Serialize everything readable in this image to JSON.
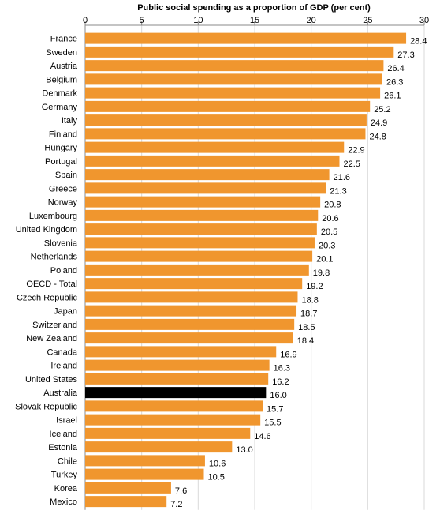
{
  "chart_data": {
    "type": "bar",
    "orientation": "horizontal",
    "title": "Public social spending as a proportion  of GDP (per cent)",
    "xlabel": "",
    "ylabel": "",
    "xlim": [
      0,
      30
    ],
    "x_ticks": [
      "0",
      "5",
      "10",
      "15",
      "20",
      "25",
      "30"
    ],
    "axis_position": "top",
    "grid": true,
    "categories": [
      "France",
      "Sweden",
      "Austria",
      "Belgium",
      "Denmark",
      "Germany",
      "Italy",
      "Finland",
      "Hungary",
      "Portugal",
      "Spain",
      "Greece",
      "Norway",
      "Luxembourg",
      "United Kingdom",
      "Slovenia",
      "Netherlands",
      "Poland",
      "OECD - Total",
      "Czech Republic",
      "Japan",
      "Switzerland",
      "New Zealand",
      "Canada",
      "Ireland",
      "United States",
      "Australia",
      "Slovak Republic",
      "Israel",
      "Iceland",
      "Estonia",
      "Chile",
      "Turkey",
      "Korea",
      "Mexico"
    ],
    "values": [
      28.4,
      27.3,
      26.4,
      26.3,
      26.1,
      25.2,
      24.9,
      24.8,
      22.9,
      22.5,
      21.6,
      21.3,
      20.8,
      20.6,
      20.5,
      20.3,
      20.1,
      19.8,
      19.2,
      18.8,
      18.7,
      18.5,
      18.4,
      16.9,
      16.3,
      16.2,
      16.0,
      15.7,
      15.5,
      14.6,
      13.0,
      10.6,
      10.5,
      7.6,
      7.2
    ],
    "value_labels": [
      "28.4",
      "27.3",
      "26.4",
      "26.3",
      "26.1",
      "25.2",
      "24.9",
      "24.8",
      "22.9",
      "22.5",
      "21.6",
      "21.3",
      "20.8",
      "20.6",
      "20.5",
      "20.3",
      "20.1",
      "19.8",
      "19.2",
      "18.8",
      "18.7",
      "18.5",
      "18.4",
      "16.9",
      "16.3",
      "16.2",
      "16.0",
      "15.7",
      "15.5",
      "14.6",
      "13.0",
      "10.6",
      "10.5",
      "7.6",
      "7.2"
    ],
    "bar_color": "#F0962E",
    "highlight": "Australia",
    "highlight_color": "#000000"
  }
}
